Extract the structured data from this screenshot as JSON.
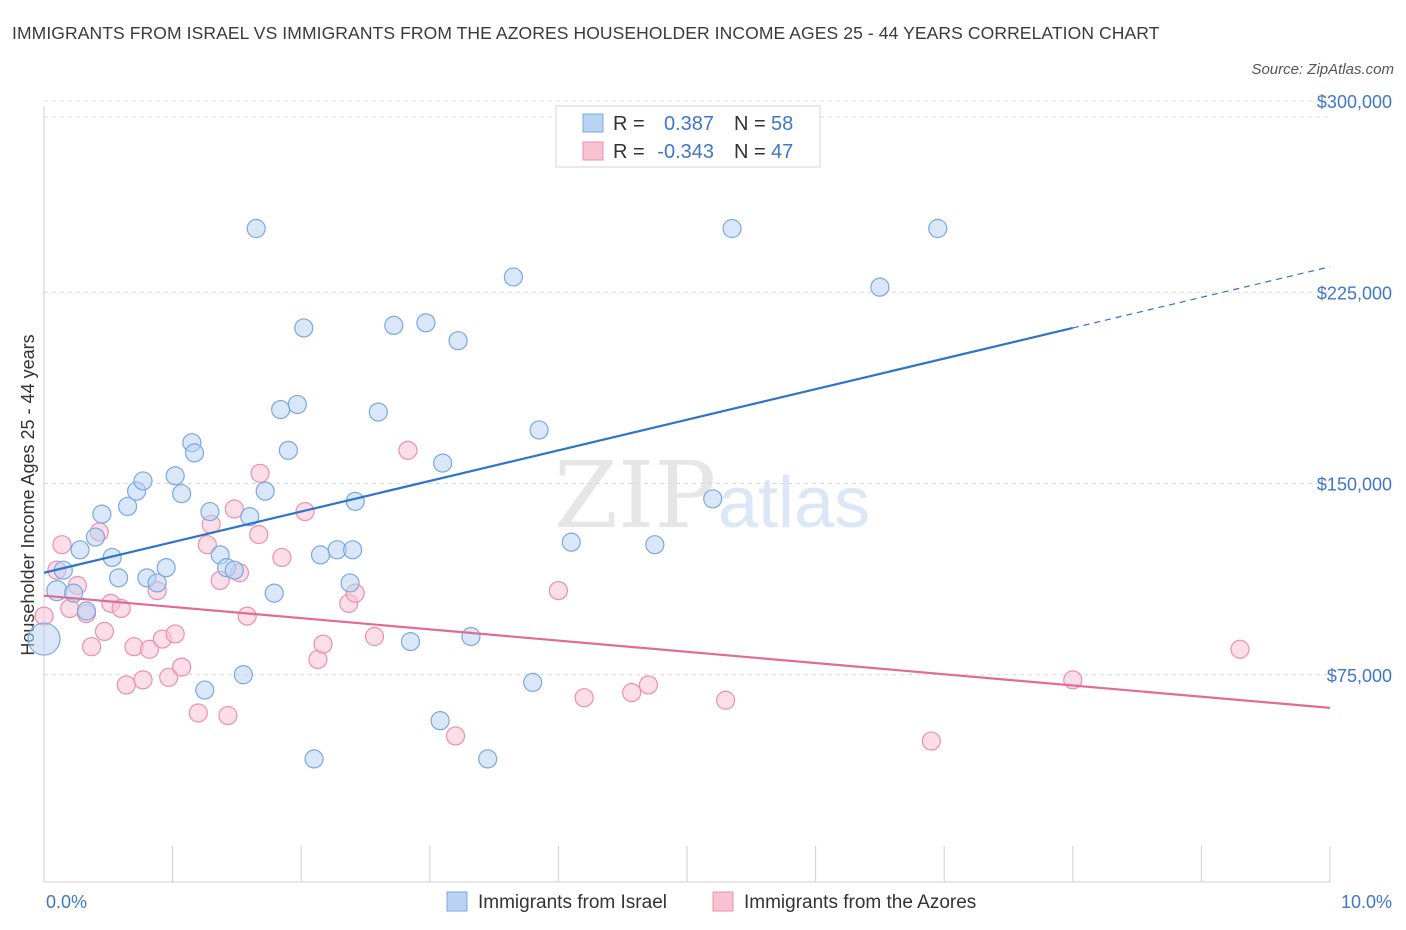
{
  "title": "IMMIGRANTS FROM ISRAEL VS IMMIGRANTS FROM THE AZORES HOUSEHOLDER INCOME AGES 25 - 44 YEARS CORRELATION CHART",
  "source": "Source: ZipAtlas.com",
  "watermark": {
    "zip": "ZIP",
    "atlas": "atlas"
  },
  "colors": {
    "israel_fill": "#b9d3f3",
    "israel_stroke": "#7aa8e0",
    "israel_line": "#2e74c9",
    "azores_fill": "#f7c3d3",
    "azores_stroke": "#ec8fae",
    "azores_line": "#e36a96",
    "tick_text": "#3f77c8",
    "grid": "#d9d9d9"
  },
  "legend": {
    "r_label": "R =",
    "n_label": "N =",
    "rows": [
      {
        "series": "israel",
        "r": "0.387",
        "n": "58"
      },
      {
        "series": "azores",
        "r": "-0.343",
        "n": "47"
      }
    ]
  },
  "chart_data": {
    "type": "scatter",
    "xlabel": "",
    "ylabel": "Householder Income Ages 25 - 44 years",
    "xlim": [
      0,
      10
    ],
    "ylim": [
      0,
      300000
    ],
    "x_tick_labels": [
      "0.0%",
      "10.0%"
    ],
    "y_ticks": [
      75000,
      150000,
      225000,
      300000
    ],
    "y_tick_labels": [
      "$75,000",
      "$150,000",
      "$225,000",
      "$300,000"
    ],
    "grid": true,
    "legend_position": "top-center",
    "series": [
      {
        "name": "Immigrants from Israel",
        "color": "#7aa8e0",
        "trend": {
          "x": [
            0.0,
            8.0
          ],
          "y": [
            115000,
            211000
          ],
          "dashed_extension_to": [
            10.0,
            235000
          ]
        },
        "points": [
          [
            0.1,
            108000,
            10
          ],
          [
            0.0,
            89000,
            16
          ],
          [
            0.15,
            116000,
            9
          ],
          [
            0.23,
            107000,
            9
          ],
          [
            0.28,
            124000,
            9
          ],
          [
            0.33,
            100000,
            9
          ],
          [
            0.4,
            129000,
            9
          ],
          [
            0.45,
            138000,
            9
          ],
          [
            0.53,
            121000,
            9
          ],
          [
            0.58,
            113000,
            9
          ],
          [
            0.65,
            141000,
            9
          ],
          [
            0.72,
            147000,
            9
          ],
          [
            0.77,
            151000,
            9
          ],
          [
            0.8,
            113000,
            9
          ],
          [
            0.88,
            111000,
            9
          ],
          [
            0.95,
            117000,
            9
          ],
          [
            1.02,
            153000,
            9
          ],
          [
            1.07,
            146000,
            9
          ],
          [
            1.15,
            166000,
            9
          ],
          [
            1.17,
            162000,
            9
          ],
          [
            1.25,
            69000,
            9
          ],
          [
            1.29,
            139000,
            9
          ],
          [
            1.37,
            122000,
            9
          ],
          [
            1.42,
            117000,
            9
          ],
          [
            1.48,
            116000,
            9
          ],
          [
            1.55,
            75000,
            9
          ],
          [
            1.6,
            137000,
            9
          ],
          [
            1.65,
            250000,
            9
          ],
          [
            1.72,
            147000,
            9
          ],
          [
            1.79,
            107000,
            9
          ],
          [
            1.84,
            179000,
            9
          ],
          [
            1.9,
            163000,
            9
          ],
          [
            1.97,
            181000,
            9
          ],
          [
            2.02,
            211000,
            9
          ],
          [
            2.1,
            42000,
            9
          ],
          [
            2.15,
            122000,
            9
          ],
          [
            2.28,
            124000,
            9
          ],
          [
            2.38,
            111000,
            9
          ],
          [
            2.4,
            124000,
            9
          ],
          [
            2.42,
            143000,
            9
          ],
          [
            2.6,
            178000,
            9
          ],
          [
            2.72,
            212000,
            9
          ],
          [
            2.85,
            88000,
            9
          ],
          [
            2.97,
            213000,
            9
          ],
          [
            3.08,
            57000,
            9
          ],
          [
            3.1,
            158000,
            9
          ],
          [
            3.22,
            206000,
            9
          ],
          [
            3.32,
            90000,
            9
          ],
          [
            3.45,
            42000,
            9
          ],
          [
            3.65,
            231000,
            9
          ],
          [
            3.8,
            72000,
            9
          ],
          [
            3.85,
            171000,
            9
          ],
          [
            4.1,
            127000,
            9
          ],
          [
            4.75,
            126000,
            9
          ],
          [
            5.2,
            144000,
            9
          ],
          [
            5.35,
            250000,
            9
          ],
          [
            6.5,
            227000,
            9
          ],
          [
            6.95,
            250000,
            9
          ]
        ]
      },
      {
        "name": "Immigrants from the Azores",
        "color": "#ec8fae",
        "trend": {
          "x": [
            0.0,
            10.0
          ],
          "y": [
            106000,
            62000
          ]
        },
        "points": [
          [
            0.0,
            98000,
            9
          ],
          [
            0.1,
            116000,
            9
          ],
          [
            0.14,
            126000,
            9
          ],
          [
            0.2,
            101000,
            9
          ],
          [
            0.26,
            110000,
            9
          ],
          [
            0.33,
            99000,
            9
          ],
          [
            0.37,
            86000,
            9
          ],
          [
            0.43,
            131000,
            9
          ],
          [
            0.47,
            92000,
            9
          ],
          [
            0.52,
            103000,
            9
          ],
          [
            0.6,
            101000,
            9
          ],
          [
            0.64,
            71000,
            9
          ],
          [
            0.7,
            86000,
            9
          ],
          [
            0.77,
            73000,
            9
          ],
          [
            0.82,
            85000,
            9
          ],
          [
            0.88,
            108000,
            9
          ],
          [
            0.92,
            89000,
            9
          ],
          [
            0.97,
            74000,
            9
          ],
          [
            1.02,
            91000,
            9
          ],
          [
            1.07,
            78000,
            9
          ],
          [
            1.2,
            60000,
            9
          ],
          [
            1.27,
            126000,
            9
          ],
          [
            1.3,
            134000,
            9
          ],
          [
            1.37,
            112000,
            9
          ],
          [
            1.43,
            59000,
            9
          ],
          [
            1.48,
            140000,
            9
          ],
          [
            1.52,
            115000,
            9
          ],
          [
            1.58,
            98000,
            9
          ],
          [
            1.67,
            130000,
            9
          ],
          [
            1.68,
            154000,
            9
          ],
          [
            1.85,
            121000,
            9
          ],
          [
            2.03,
            139000,
            9
          ],
          [
            2.13,
            81000,
            9
          ],
          [
            2.17,
            87000,
            9
          ],
          [
            2.37,
            103000,
            9
          ],
          [
            2.42,
            107000,
            9
          ],
          [
            2.57,
            90000,
            9
          ],
          [
            2.83,
            163000,
            9
          ],
          [
            3.2,
            51000,
            9
          ],
          [
            4.0,
            108000,
            9
          ],
          [
            4.2,
            66000,
            9
          ],
          [
            4.57,
            68000,
            9
          ],
          [
            4.7,
            71000,
            9
          ],
          [
            5.3,
            65000,
            9
          ],
          [
            6.9,
            49000,
            9
          ],
          [
            8.0,
            73000,
            9
          ],
          [
            9.3,
            85000,
            9
          ]
        ]
      }
    ]
  },
  "bottom_legend": [
    {
      "series": "israel",
      "label": "Immigrants from Israel"
    },
    {
      "series": "azores",
      "label": "Immigrants from the Azores"
    }
  ]
}
